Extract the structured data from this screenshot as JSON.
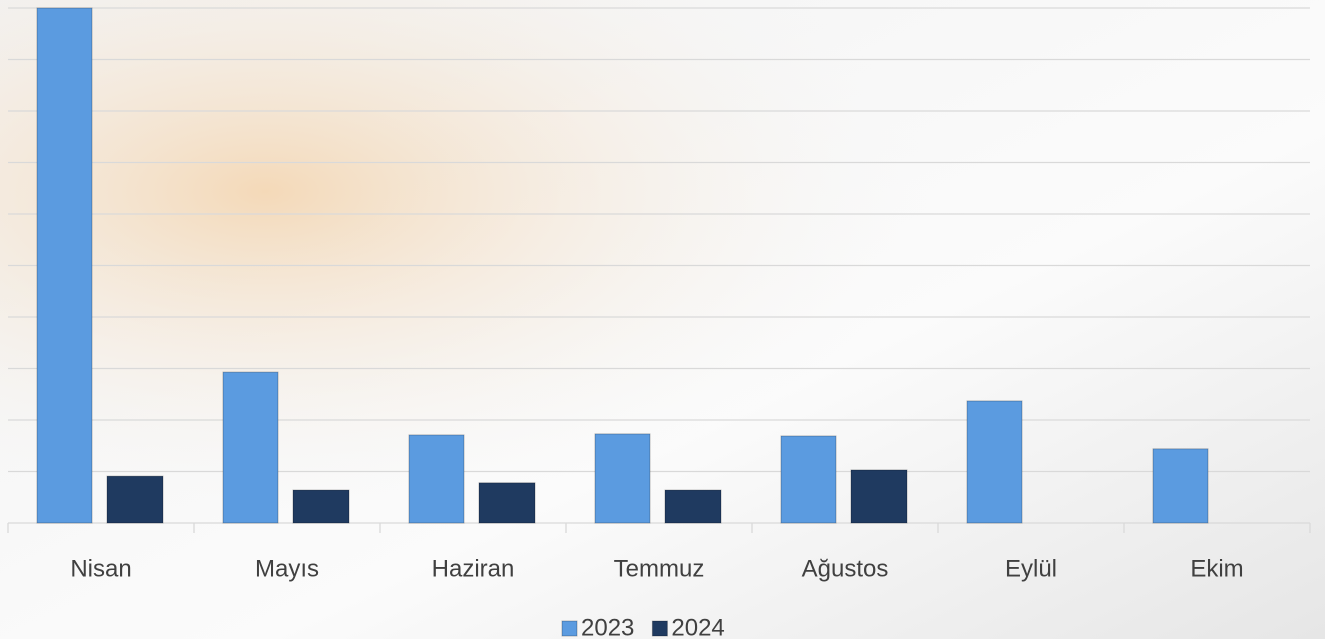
{
  "chart_data": {
    "type": "bar",
    "categories": [
      "Nisan",
      "Mayıs",
      "Haziran",
      "Temmuz",
      "Ağustos",
      "Eylül",
      "Ekim"
    ],
    "series": [
      {
        "name": "2023",
        "color": "#5b9be0",
        "values": [
          10,
          2.93,
          1.71,
          1.73,
          1.69,
          2.37,
          1.44
        ]
      },
      {
        "name": "2024",
        "color": "#1f3a60",
        "values": [
          0.91,
          0.64,
          0.78,
          0.64,
          1.03,
          null,
          null
        ]
      }
    ],
    "ylim": [
      0,
      10
    ],
    "yticks": [
      0,
      1,
      2,
      3,
      4,
      5,
      6,
      7,
      8,
      9,
      10
    ],
    "grid": true,
    "legend": "bottom"
  }
}
